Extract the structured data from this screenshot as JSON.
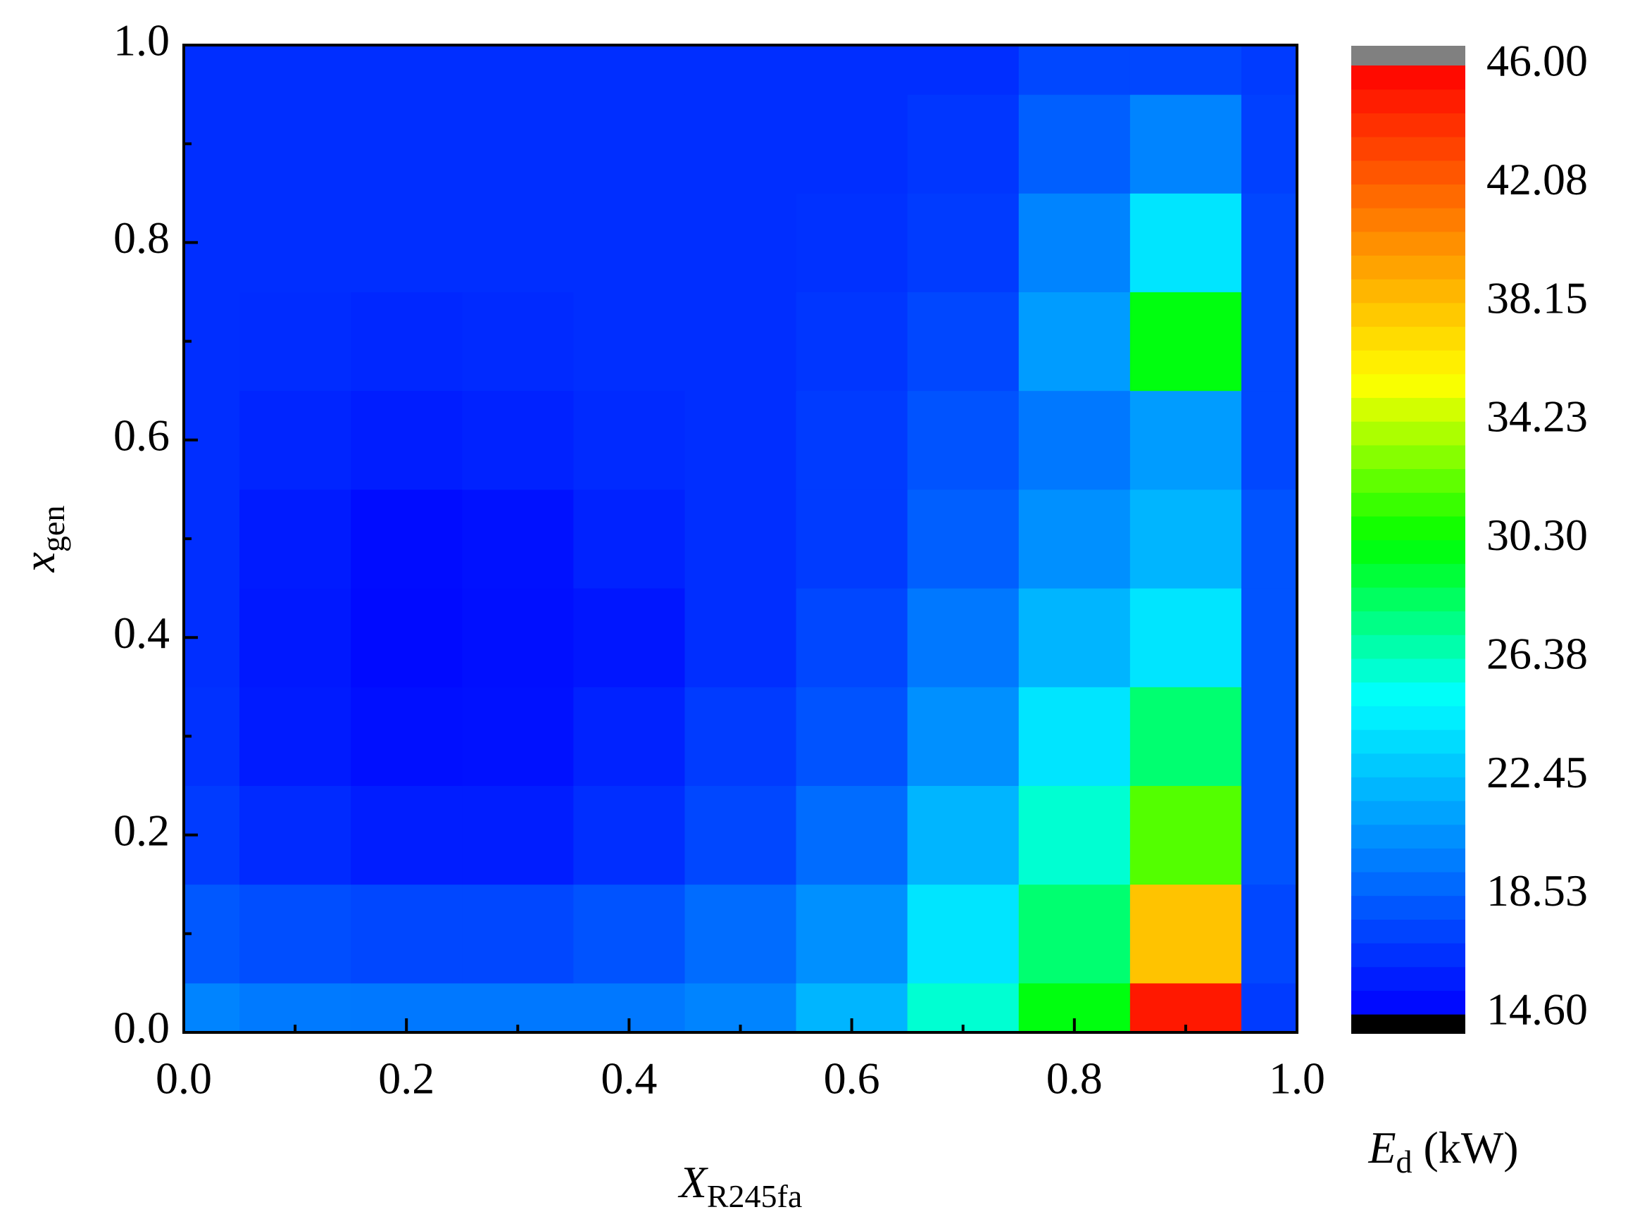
{
  "chart_data": {
    "type": "contour",
    "xlabel": {
      "main": "X",
      "sub": "R245fa"
    },
    "ylabel": {
      "main": "x",
      "sub": "gen"
    },
    "colorbar_label": {
      "main": "E",
      "sub": "d",
      "unit": " (kW)"
    },
    "x": [
      0,
      0.1,
      0.2,
      0.3,
      0.4,
      0.5,
      0.6,
      0.7,
      0.8,
      0.9,
      1
    ],
    "y": [
      0,
      0.1,
      0.2,
      0.3,
      0.4,
      0.5,
      0.6,
      0.7,
      0.8,
      0.9,
      1
    ],
    "z": [
      [
        20,
        19.6,
        19.5,
        19.5,
        19.5,
        20,
        22,
        26,
        30,
        45,
        17
      ],
      [
        18.2,
        17.8,
        17.5,
        17.5,
        18,
        19,
        20.5,
        24,
        28,
        38,
        17.5
      ],
      [
        17,
        16.3,
        15.8,
        15.8,
        16.5,
        17.5,
        19,
        22,
        26,
        32,
        18
      ],
      [
        16.6,
        15.7,
        15.2,
        15.3,
        16,
        17,
        18,
        20.5,
        24,
        28,
        18
      ],
      [
        16.5,
        15.6,
        15,
        15.2,
        15.5,
        16.5,
        17.5,
        19.5,
        22,
        24,
        18
      ],
      [
        16.5,
        15.7,
        15.1,
        15.3,
        16,
        16.5,
        17,
        18.5,
        20.5,
        22,
        18
      ],
      [
        16.5,
        16.1,
        15.8,
        16,
        16.3,
        16.5,
        17,
        18,
        19.5,
        21,
        17.5
      ],
      [
        16.5,
        16.4,
        16.2,
        16.3,
        16.5,
        16.5,
        16.8,
        17.5,
        21,
        30,
        17.5
      ],
      [
        16.5,
        16.5,
        16.5,
        16.5,
        16.5,
        16.5,
        16.6,
        17,
        20,
        24,
        17.5
      ],
      [
        16.5,
        16.5,
        16.5,
        16.5,
        16.5,
        16.5,
        16.5,
        16.8,
        18.5,
        20,
        17.2
      ],
      [
        16.5,
        16.5,
        16.5,
        16.5,
        16.5,
        16.5,
        16.5,
        16.5,
        17.5,
        17.5,
        17
      ]
    ],
    "xlim": [
      0,
      1
    ],
    "ylim": [
      0,
      1
    ],
    "xticks": [
      {
        "value": 0,
        "label": "0.0"
      },
      0.2,
      0.4,
      0.6,
      0.8,
      {
        "value": 1,
        "label": "1.0"
      }
    ],
    "yticks": [
      {
        "value": 0,
        "label": "0.0"
      },
      0.2,
      0.4,
      0.6,
      0.8,
      {
        "value": 1,
        "label": "1.0"
      }
    ],
    "xminorticks": [
      0.1,
      0.3,
      0.5,
      0.7,
      0.9
    ],
    "yminorticks": [
      0.1,
      0.3,
      0.5,
      0.7,
      0.9
    ],
    "zlim": [
      14.6,
      46
    ],
    "zticks": [
      {
        "value": 14.6,
        "label": "14.60"
      },
      18.53,
      22.45,
      26.38,
      {
        "value": 30.3,
        "label": "30.30"
      },
      34.23,
      38.15,
      42.08,
      {
        "value": 46,
        "label": "46.00"
      }
    ],
    "colormap": [
      "#0000ff",
      "#0080ff",
      "#00ffff",
      "#00ff00",
      "#ffff00",
      "#ff8000",
      "#ff0000"
    ],
    "under_color": "#000000",
    "over_color": "#808080"
  }
}
